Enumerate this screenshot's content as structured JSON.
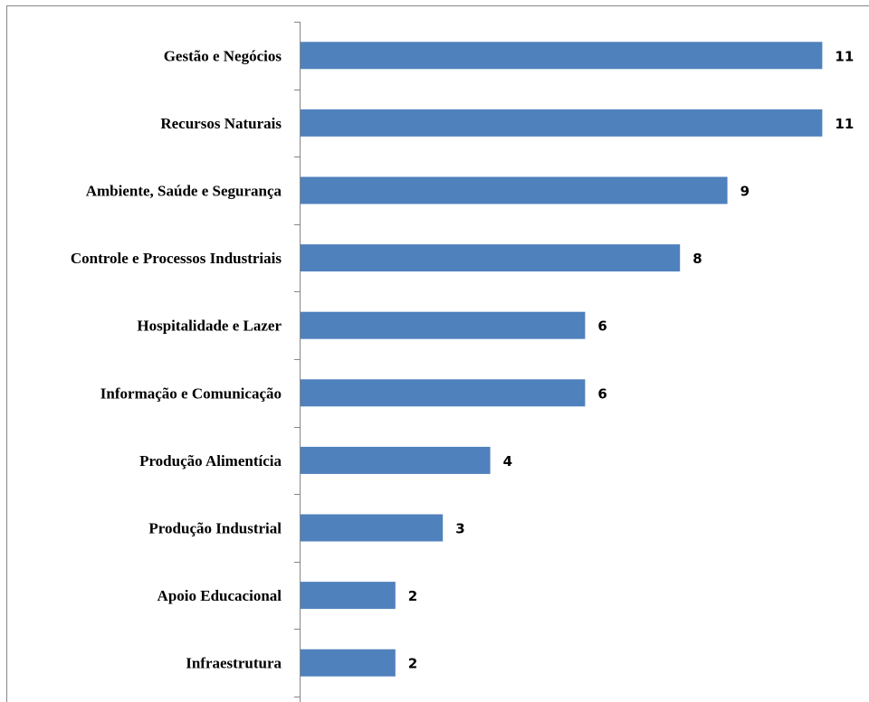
{
  "chart_data": {
    "type": "bar",
    "orientation": "horizontal",
    "categories": [
      "Gestão e Negócios",
      "Recursos Naturais",
      "Ambiente, Saúde e Segurança",
      "Controle e Processos Industriais",
      "Hospitalidade e Lazer",
      "Informação e Comunicação",
      "Produção Alimentícia",
      "Produção Industrial",
      "Apoio Educacional",
      "Infraestrutura"
    ],
    "values": [
      11,
      11,
      9,
      8,
      6,
      6,
      4,
      3,
      2,
      2
    ],
    "title": "",
    "xlabel": "",
    "ylabel": "",
    "xlim": [
      0,
      12
    ],
    "grid": false,
    "legend": "none",
    "data_labels": true,
    "bar_color": "#4f81bd",
    "frame_color": "#868686"
  }
}
